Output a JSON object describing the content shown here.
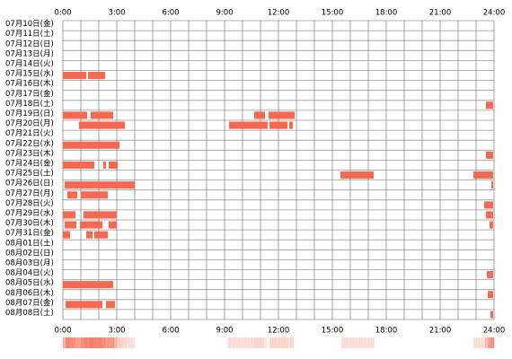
{
  "chart_data": {
    "type": "timeline",
    "categories": [
      "07月10日(金)",
      "07月11日(土)",
      "07月12日(日)",
      "07月13日(月)",
      "07月14日(火)",
      "07月15日(水)",
      "07月16日(木)",
      "07月17日(金)",
      "07月18日(土)",
      "07月19日(日)",
      "07月20日(月)",
      "07月21日(火)",
      "07月22日(水)",
      "07月23日(木)",
      "07月24日(金)",
      "07月25日(土)",
      "07月26日(日)",
      "07月27日(月)",
      "07月28日(火)",
      "07月29日(水)",
      "07月30日(木)",
      "07月31日(金)",
      "08月01日(土)",
      "08月02日(日)",
      "08月03日(月)",
      "08月04日(火)",
      "08月05日(水)",
      "08月06日(木)",
      "08月07日(金)",
      "08月08日(土)"
    ],
    "segments": [
      [],
      [],
      [],
      [],
      [],
      [
        [
          0,
          1.3
        ],
        [
          1.4,
          2.35
        ]
      ],
      [],
      [],
      [
        [
          23.55,
          23.95
        ]
      ],
      [
        [
          0,
          1.35
        ],
        [
          1.55,
          2.8
        ],
        [
          10.65,
          11.25
        ],
        [
          11.45,
          12.9
        ]
      ],
      [
        [
          0.9,
          3.45
        ],
        [
          9.25,
          11.4
        ],
        [
          11.5,
          12.5
        ],
        [
          12.6,
          12.8
        ]
      ],
      [],
      [
        [
          0,
          3.15
        ]
      ],
      [
        [
          23.55,
          23.95
        ]
      ],
      [
        [
          0,
          1.75
        ],
        [
          2.25,
          2.4
        ],
        [
          2.55,
          3.05
        ]
      ],
      [
        [
          15.45,
          17.3
        ],
        [
          22.85,
          23.95
        ]
      ],
      [
        [
          0.1,
          4.0
        ],
        [
          23.85,
          23.95
        ]
      ],
      [
        [
          0.25,
          0.8
        ],
        [
          1.0,
          2.5
        ]
      ],
      [
        [
          23.45,
          23.95
        ]
      ],
      [
        [
          0,
          0.7
        ],
        [
          1.15,
          3.0
        ],
        [
          23.55,
          23.95
        ]
      ],
      [
        [
          0.1,
          0.75
        ],
        [
          0.95,
          2.2
        ],
        [
          2.55,
          3.0
        ],
        [
          23.75,
          23.95
        ]
      ],
      [
        [
          0,
          0.4
        ],
        [
          1.3,
          1.65
        ],
        [
          1.75,
          2.5
        ]
      ],
      [],
      [],
      [],
      [
        [
          23.6,
          23.95
        ]
      ],
      [
        [
          0,
          2.8
        ]
      ],
      [
        [
          23.65,
          23.95
        ]
      ],
      [
        [
          0.15,
          2.2
        ],
        [
          2.4,
          2.9
        ]
      ],
      [
        [
          23.8,
          23.95
        ]
      ]
    ],
    "color": "#f4694f",
    "xlim": [
      0,
      24
    ],
    "xticks": [
      {
        "value": 0,
        "label": "0:00"
      },
      {
        "value": 3,
        "label": "3:00"
      },
      {
        "value": 6,
        "label": "6:00"
      },
      {
        "value": 9,
        "label": "9:00"
      },
      {
        "value": 12,
        "label": "12:00"
      },
      {
        "value": 15,
        "label": "15:00"
      },
      {
        "value": 18,
        "label": "18:00"
      },
      {
        "value": 21,
        "label": "21:00"
      },
      {
        "value": 24,
        "label": "24:00"
      }
    ],
    "minor_xticks": [
      0,
      1,
      2,
      3,
      4,
      5,
      6,
      7,
      8,
      9,
      10,
      11,
      12,
      13,
      14,
      15,
      16,
      17,
      18,
      19,
      20,
      21,
      22,
      23,
      24
    ],
    "grid": true
  }
}
